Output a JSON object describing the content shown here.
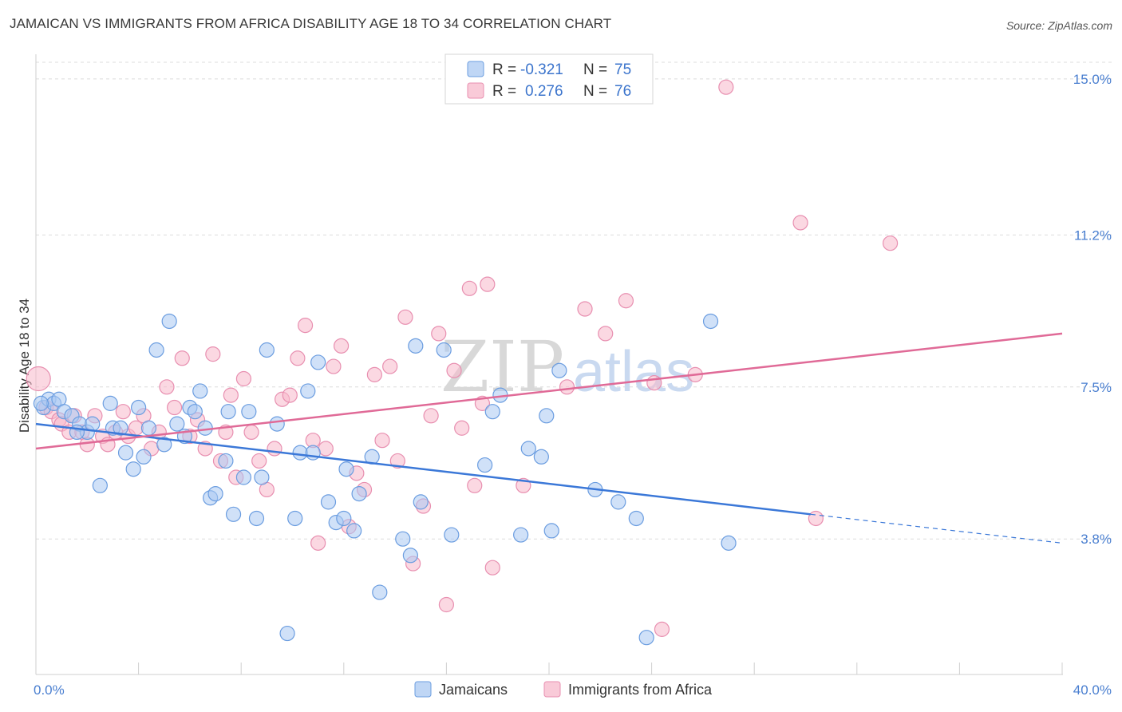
{
  "header": {
    "title": "JAMAICAN VS IMMIGRANTS FROM AFRICA DISABILITY AGE 18 TO 34 CORRELATION CHART",
    "source": "Source: ZipAtlas.com"
  },
  "watermark": {
    "zip": "ZIP",
    "atlas": "atlas"
  },
  "legend_stats": [
    {
      "r_label": "R =",
      "r_value": "-0.321",
      "n_label": "N =",
      "n_value": "75",
      "color": "#a9c8f2"
    },
    {
      "r_label": "R =",
      "r_value": "0.276",
      "n_label": "N =",
      "n_value": "76",
      "color": "#f7b8cb"
    }
  ],
  "bottom_legend": [
    {
      "label": "Jamaicans",
      "color": "#a9c8f2"
    },
    {
      "label": "Immigrants from Africa",
      "color": "#f7b8cb"
    }
  ],
  "chart_data": {
    "type": "scatter",
    "title": "JAMAICAN VS IMMIGRANTS FROM AFRICA DISABILITY AGE 18 TO 34 CORRELATION CHART",
    "xlabel": "",
    "ylabel": "Disability Age 18 to 34",
    "xlim": [
      0,
      40
    ],
    "ylim": [
      0.5,
      15.6
    ],
    "x_tick_labels": [
      "0.0%",
      "40.0%"
    ],
    "y_ticks": [
      3.8,
      7.5,
      11.2,
      15.0
    ],
    "y_tick_labels": [
      "3.8%",
      "7.5%",
      "11.2%",
      "15.0%"
    ],
    "grid": true,
    "legend_position": "top-center",
    "colors": {
      "jamaicans": "#3b78d8",
      "africa": "#e06a97",
      "jamaicans_fill": "#a9c8f2",
      "africa_fill": "#f7b8cb"
    },
    "series": [
      {
        "name": "Jamaicans",
        "r": -0.321,
        "n": 75,
        "trend": {
          "x0": 0,
          "y0": 6.6,
          "x1": 30.2,
          "y1": 4.4,
          "dash_to_x": 40,
          "dash_to_y": 3.7
        },
        "points": [
          [
            0.3,
            7.0
          ],
          [
            0.5,
            7.2
          ],
          [
            0.7,
            7.1
          ],
          [
            0.9,
            7.2
          ],
          [
            1.1,
            6.9
          ],
          [
            1.4,
            6.8
          ],
          [
            1.7,
            6.6
          ],
          [
            2.0,
            6.4
          ],
          [
            2.2,
            6.6
          ],
          [
            2.5,
            5.1
          ],
          [
            2.9,
            7.1
          ],
          [
            3.0,
            6.5
          ],
          [
            3.3,
            6.5
          ],
          [
            3.5,
            5.9
          ],
          [
            3.8,
            5.5
          ],
          [
            4.0,
            7.0
          ],
          [
            4.2,
            5.8
          ],
          [
            4.4,
            6.5
          ],
          [
            4.7,
            8.4
          ],
          [
            5.0,
            6.1
          ],
          [
            5.2,
            9.1
          ],
          [
            5.5,
            6.6
          ],
          [
            5.8,
            6.3
          ],
          [
            6.0,
            7.0
          ],
          [
            6.2,
            6.9
          ],
          [
            6.4,
            7.4
          ],
          [
            6.6,
            6.5
          ],
          [
            6.8,
            4.8
          ],
          [
            7.0,
            4.9
          ],
          [
            7.4,
            5.7
          ],
          [
            7.5,
            6.9
          ],
          [
            7.7,
            4.4
          ],
          [
            8.1,
            5.3
          ],
          [
            8.3,
            6.9
          ],
          [
            8.6,
            4.3
          ],
          [
            8.8,
            5.3
          ],
          [
            9.0,
            8.4
          ],
          [
            9.4,
            6.6
          ],
          [
            9.8,
            1.5
          ],
          [
            10.1,
            4.3
          ],
          [
            10.3,
            5.9
          ],
          [
            10.6,
            7.4
          ],
          [
            10.8,
            5.9
          ],
          [
            11.0,
            8.1
          ],
          [
            11.4,
            4.7
          ],
          [
            11.7,
            4.2
          ],
          [
            12.0,
            4.3
          ],
          [
            12.1,
            5.5
          ],
          [
            12.4,
            4.0
          ],
          [
            12.6,
            4.9
          ],
          [
            13.1,
            5.8
          ],
          [
            13.4,
            2.5
          ],
          [
            14.3,
            3.8
          ],
          [
            14.6,
            3.4
          ],
          [
            14.8,
            8.5
          ],
          [
            15.0,
            4.7
          ],
          [
            15.9,
            8.4
          ],
          [
            16.2,
            3.9
          ],
          [
            17.5,
            5.6
          ],
          [
            17.8,
            6.9
          ],
          [
            18.1,
            7.3
          ],
          [
            18.9,
            3.9
          ],
          [
            19.2,
            6.0
          ],
          [
            19.7,
            5.8
          ],
          [
            19.9,
            6.8
          ],
          [
            20.1,
            4.0
          ],
          [
            20.4,
            7.9
          ],
          [
            21.8,
            5.0
          ],
          [
            22.7,
            4.7
          ],
          [
            23.4,
            4.3
          ],
          [
            23.8,
            1.4
          ],
          [
            26.3,
            9.1
          ],
          [
            27.0,
            3.7
          ],
          [
            0.2,
            7.1
          ],
          [
            1.6,
            6.4
          ]
        ]
      },
      {
        "name": "Immigrants from Africa",
        "r": 0.276,
        "n": 76,
        "trend": {
          "x0": 0,
          "y0": 6.0,
          "x1": 40,
          "y1": 8.8
        },
        "points": [
          [
            0.1,
            7.7
          ],
          [
            0.4,
            7.0
          ],
          [
            0.6,
            6.9
          ],
          [
            0.9,
            6.7
          ],
          [
            1.0,
            6.6
          ],
          [
            1.3,
            6.4
          ],
          [
            1.5,
            6.8
          ],
          [
            1.8,
            6.4
          ],
          [
            2.0,
            6.1
          ],
          [
            2.3,
            6.8
          ],
          [
            2.6,
            6.3
          ],
          [
            2.8,
            6.1
          ],
          [
            3.1,
            6.4
          ],
          [
            3.4,
            6.9
          ],
          [
            3.6,
            6.3
          ],
          [
            3.9,
            6.5
          ],
          [
            4.2,
            6.8
          ],
          [
            4.5,
            6.0
          ],
          [
            4.8,
            6.4
          ],
          [
            5.1,
            7.5
          ],
          [
            5.4,
            7.0
          ],
          [
            5.7,
            8.2
          ],
          [
            6.0,
            6.3
          ],
          [
            6.3,
            6.7
          ],
          [
            6.6,
            6.0
          ],
          [
            6.9,
            8.3
          ],
          [
            7.2,
            5.7
          ],
          [
            7.4,
            6.4
          ],
          [
            7.6,
            7.3
          ],
          [
            7.8,
            5.3
          ],
          [
            8.1,
            7.7
          ],
          [
            8.4,
            6.4
          ],
          [
            8.7,
            5.7
          ],
          [
            9.0,
            5.0
          ],
          [
            9.3,
            6.0
          ],
          [
            9.6,
            7.2
          ],
          [
            9.9,
            7.3
          ],
          [
            10.2,
            8.2
          ],
          [
            10.5,
            9.0
          ],
          [
            10.8,
            6.2
          ],
          [
            11.0,
            3.7
          ],
          [
            11.3,
            6.0
          ],
          [
            11.6,
            8.0
          ],
          [
            11.9,
            8.5
          ],
          [
            12.2,
            4.1
          ],
          [
            12.5,
            5.4
          ],
          [
            12.8,
            5.0
          ],
          [
            13.2,
            7.8
          ],
          [
            13.5,
            6.2
          ],
          [
            13.8,
            8.0
          ],
          [
            14.1,
            5.7
          ],
          [
            14.4,
            9.2
          ],
          [
            14.7,
            3.2
          ],
          [
            15.1,
            4.6
          ],
          [
            15.4,
            6.8
          ],
          [
            15.7,
            8.8
          ],
          [
            16.0,
            2.2
          ],
          [
            16.3,
            7.9
          ],
          [
            16.6,
            6.5
          ],
          [
            16.9,
            9.9
          ],
          [
            17.1,
            5.1
          ],
          [
            17.4,
            7.1
          ],
          [
            17.6,
            10.0
          ],
          [
            17.8,
            3.1
          ],
          [
            19.0,
            5.1
          ],
          [
            20.7,
            7.5
          ],
          [
            21.4,
            9.4
          ],
          [
            22.2,
            8.8
          ],
          [
            23.0,
            9.6
          ],
          [
            24.1,
            7.6
          ],
          [
            24.4,
            1.6
          ],
          [
            25.7,
            7.8
          ],
          [
            26.9,
            14.8
          ],
          [
            29.8,
            11.5
          ],
          [
            30.4,
            4.3
          ],
          [
            33.3,
            11.0
          ]
        ]
      }
    ]
  }
}
